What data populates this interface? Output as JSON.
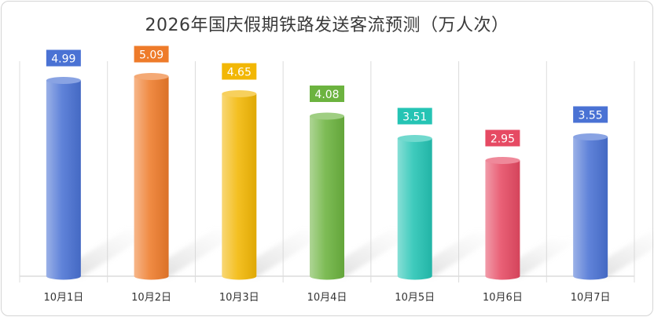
{
  "chart_data": {
    "type": "bar",
    "title": "2026年国庆假期铁路发送客流预测（万人次）",
    "categories": [
      "10月1日",
      "10月2日",
      "10月3日",
      "10月4日",
      "10月5日",
      "10月6日",
      "10月7日"
    ],
    "values": [
      4.99,
      5.09,
      4.65,
      4.08,
      3.51,
      2.95,
      3.55
    ],
    "ylim": [
      0,
      5.5
    ],
    "grid": "vertical-separators",
    "colors": [
      "#4a72d4",
      "#ee7b2a",
      "#f2b705",
      "#6cb33f",
      "#25c4b4",
      "#e64a63",
      "#4a72d4"
    ],
    "bar_style": "cylinder"
  }
}
